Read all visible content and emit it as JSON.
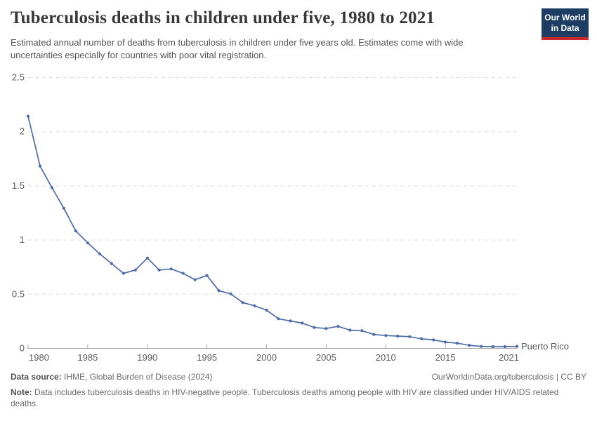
{
  "header": {
    "title": "Tuberculosis deaths in children under five, 1980 to 2021",
    "subtitle": "Estimated annual number of deaths from tuberculosis in children under five years old. Estimates come with wide uncertainties especially for countries with poor vital registration.",
    "logo_line1": "Our World",
    "logo_line2": "in Data"
  },
  "colors": {
    "line": "#4c6ba8",
    "entity_label": "#4c6ba8",
    "logo_background": "#1d3d63",
    "logo_stripe": "#cc2a2e",
    "title_text": "#383838",
    "subtitle_text": "#555555",
    "axis_text": "#5b5b5b",
    "gridline": "#dddddd",
    "axis_line": "#a5a5a5",
    "footer_text": "#6b6b6b"
  },
  "chart_data": {
    "type": "line",
    "title": "Tuberculosis deaths in children under five, 1980 to 2021",
    "xlabel": "",
    "ylabel": "",
    "xlim": [
      1980,
      2021
    ],
    "ylim": [
      0,
      2.5
    ],
    "xticks": [
      1980,
      1985,
      1990,
      1995,
      2000,
      2005,
      2010,
      2015,
      2021
    ],
    "yticks": [
      0,
      0.5,
      1,
      1.5,
      2,
      2.5
    ],
    "grid": "dashed-horizontal",
    "legend_position": "end-of-line-label",
    "marker": "dot",
    "x": [
      1980,
      1981,
      1982,
      1983,
      1984,
      1985,
      1986,
      1987,
      1988,
      1989,
      1990,
      1991,
      1992,
      1993,
      1994,
      1995,
      1996,
      1997,
      1998,
      1999,
      2000,
      2001,
      2002,
      2003,
      2004,
      2005,
      2006,
      2007,
      2008,
      2009,
      2010,
      2011,
      2012,
      2013,
      2014,
      2015,
      2016,
      2017,
      2018,
      2019,
      2020,
      2021
    ],
    "series": [
      {
        "name": "Puerto Rico",
        "values": [
          2.14,
          1.68,
          1.48,
          1.29,
          1.08,
          0.97,
          0.87,
          0.78,
          0.69,
          0.72,
          0.83,
          0.72,
          0.73,
          0.69,
          0.63,
          0.67,
          0.53,
          0.5,
          0.42,
          0.39,
          0.35,
          0.27,
          0.25,
          0.23,
          0.19,
          0.18,
          0.2,
          0.165,
          0.16,
          0.125,
          0.115,
          0.11,
          0.105,
          0.085,
          0.075,
          0.055,
          0.045,
          0.025,
          0.015,
          0.013,
          0.013,
          0.015
        ]
      }
    ]
  },
  "footer": {
    "data_source_label": "Data source:",
    "data_source_value": "IHME, Global Burden of Disease (2024)",
    "credit": "OurWorldinData.org/tuberculosis | CC BY",
    "note_label": "Note:",
    "note_text": "Data includes tuberculosis deaths in HIV-negative people. Tuberculosis deaths among people with HIV are classified under HIV/AIDS related deaths."
  }
}
